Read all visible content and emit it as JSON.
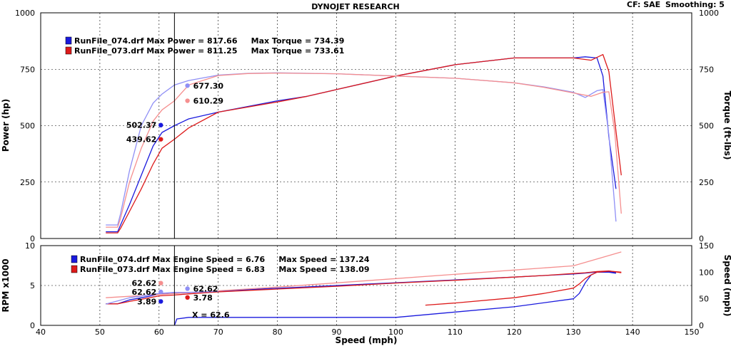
{
  "header": {
    "title": "DYNOJET RESEARCH",
    "cf_label": "CF: SAE",
    "smoothing_label": "Smoothing: 5"
  },
  "colors": {
    "run074_dark": "#1a1add",
    "run074_light": "#8f8ff5",
    "run073_dark": "#dd1a1a",
    "run073_light": "#f58f8f",
    "background": "#ffffff"
  },
  "chart_data": [
    {
      "type": "line",
      "name": "power-torque",
      "xlabel": "Speed (mph)",
      "ylabel_left": "Power (hp)",
      "ylabel_right": "Torque (ft-lbs)",
      "xlim": [
        40,
        150
      ],
      "ylim": [
        0,
        1000
      ],
      "x_ticks": [
        40,
        50,
        60,
        70,
        80,
        90,
        100,
        110,
        120,
        130,
        140,
        150
      ],
      "y_ticks": [
        0,
        250,
        500,
        750,
        1000
      ],
      "grid": true,
      "legend": [
        {
          "text": "RunFile_074.drf Max Power = 817.66     Max Torque = 734.39",
          "color": "#1a1add"
        },
        {
          "text": "RunFile_073.drf Max Power = 811.25     Max Torque = 733.61",
          "color": "#dd1a1a"
        }
      ],
      "cursor_x": 62.6,
      "series": [
        {
          "role": "power-074",
          "color": "#1a1add",
          "x": [
            51,
            53,
            53.5,
            55,
            57,
            59,
            60.5,
            62.6,
            65,
            70,
            80,
            85,
            90,
            100,
            110,
            120,
            125,
            130,
            132,
            134,
            135,
            136,
            137.2
          ],
          "y": [
            30,
            30,
            60,
            150,
            280,
            410,
            470,
            500,
            530,
            560,
            610,
            630,
            660,
            720,
            770,
            800,
            800,
            800,
            805,
            800,
            720,
            450,
            220
          ]
        },
        {
          "role": "torque-074",
          "color": "#8f8ff5",
          "x": [
            51,
            53,
            53.5,
            55,
            57,
            59,
            60.5,
            62.6,
            65,
            70,
            75,
            80,
            90,
            100,
            110,
            120,
            125,
            130,
            132,
            134,
            135,
            136,
            137.2
          ],
          "y": [
            60,
            60,
            110,
            300,
            500,
            600,
            640,
            680,
            700,
            724,
            732,
            734,
            730,
            720,
            710,
            690,
            672,
            648,
            625,
            655,
            660,
            460,
            75
          ]
        },
        {
          "role": "power-073",
          "color": "#dd1a1a",
          "x": [
            51,
            53,
            53.5,
            55,
            57,
            59,
            60.5,
            62.6,
            65,
            70,
            80,
            85,
            90,
            100,
            110,
            120,
            125,
            130,
            133,
            135,
            136,
            137,
            138.1
          ],
          "y": [
            25,
            25,
            45,
            120,
            220,
            330,
            400,
            440,
            490,
            560,
            605,
            630,
            660,
            720,
            770,
            800,
            800,
            800,
            790,
            815,
            740,
            520,
            280
          ]
        },
        {
          "role": "torque-073",
          "color": "#f58f8f",
          "x": [
            51,
            53,
            53.5,
            55,
            57,
            59,
            60.5,
            62.6,
            65,
            70,
            75,
            80,
            90,
            100,
            110,
            120,
            125,
            130,
            133,
            135,
            136,
            137,
            138.1
          ],
          "y": [
            50,
            50,
            90,
            250,
            400,
            520,
            570,
            610,
            680,
            722,
            731,
            733,
            730,
            720,
            710,
            690,
            670,
            645,
            630,
            648,
            650,
            470,
            110
          ]
        }
      ],
      "markers": [
        {
          "label": "677.30",
          "x": 64.8,
          "y": 677.3,
          "color": "#8f8ff5",
          "label_side": "right"
        },
        {
          "label": "610.29",
          "x": 64.8,
          "y": 610.29,
          "color": "#f58f8f",
          "label_side": "right"
        },
        {
          "label": "502.37",
          "x": 60.3,
          "y": 502.37,
          "color": "#1a1add",
          "label_side": "left"
        },
        {
          "label": "439.62",
          "x": 60.3,
          "y": 439.62,
          "color": "#dd1a1a",
          "label_side": "left"
        }
      ]
    },
    {
      "type": "line",
      "name": "rpm-speed",
      "xlabel": "Speed (mph)",
      "ylabel_left": "RPM x1000",
      "ylabel_right": "Speed (mph)",
      "xlim": [
        40,
        150
      ],
      "ylim": [
        0,
        10
      ],
      "ylim_right": [
        0,
        150
      ],
      "x_ticks": [
        40,
        50,
        60,
        70,
        80,
        90,
        100,
        110,
        120,
        130,
        140,
        150
      ],
      "y_ticks": [
        0,
        5,
        10
      ],
      "y_ticks_right": [
        0,
        50,
        100,
        150
      ],
      "grid": true,
      "legend": [
        {
          "text": "RunFile_074.drf Max Engine Speed = 6.76     Max Speed = 137.24",
          "color": "#1a1add"
        },
        {
          "text": "RunFile_073.drf Max Engine Speed = 6.83     Max Speed = 138.09",
          "color": "#dd1a1a"
        }
      ],
      "cursor_label": "X = 62.6",
      "series": [
        {
          "role": "rpm-074",
          "color": "#1a1add",
          "x": [
            51,
            53,
            55,
            58,
            60,
            62.6,
            65,
            70,
            80,
            90,
            100,
            110,
            120,
            125,
            130,
            132,
            134,
            136,
            137.2
          ],
          "y": [
            2.7,
            2.7,
            3.2,
            3.6,
            3.9,
            4.0,
            4.1,
            4.3,
            4.65,
            5.0,
            5.35,
            5.7,
            6.05,
            6.25,
            6.45,
            6.55,
            6.7,
            6.76,
            6.6
          ]
        },
        {
          "role": "rpm-073",
          "color": "#dd1a1a",
          "x": [
            51,
            53,
            55,
            58,
            60,
            62.6,
            65,
            70,
            80,
            90,
            100,
            110,
            120,
            125,
            130,
            132,
            134,
            136,
            138.1
          ],
          "y": [
            2.7,
            2.7,
            3.0,
            3.4,
            3.7,
            3.8,
            3.95,
            4.2,
            4.55,
            4.9,
            5.3,
            5.65,
            6.05,
            6.25,
            6.5,
            6.6,
            6.75,
            6.83,
            6.6
          ]
        },
        {
          "role": "speed-073-light",
          "color": "#f58f8f",
          "axis": "right",
          "x": [
            51,
            60,
            70,
            80,
            90,
            100,
            110,
            120,
            130,
            138.1
          ],
          "y": [
            52,
            58,
            65,
            72,
            80,
            88,
            96,
            104,
            112,
            138.09
          ]
        },
        {
          "role": "speed-074-light",
          "color": "#8f8ff5",
          "axis": "right",
          "x": [
            51,
            55,
            60,
            62.6,
            65,
            70
          ],
          "y": [
            40,
            52,
            60,
            62,
            62,
            64
          ]
        },
        {
          "role": "speed-074-lower",
          "color": "#1a1add",
          "axis": "right",
          "x": [
            62.6,
            63,
            65,
            70,
            80,
            90,
            100,
            110,
            120,
            130,
            131,
            132,
            133,
            134,
            136,
            137.2
          ],
          "y": [
            0,
            12,
            15,
            15,
            15,
            15,
            15,
            25,
            35,
            50,
            60,
            80,
            95,
            100,
            100,
            98
          ]
        },
        {
          "role": "speed-073-lower",
          "color": "#dd1a1a",
          "axis": "right",
          "x": [
            105,
            110,
            120,
            125,
            130,
            131,
            132,
            133,
            134,
            136,
            138.1
          ],
          "y": [
            38,
            42,
            52,
            60,
            70,
            78,
            88,
            95,
            100,
            102,
            100
          ]
        }
      ],
      "markers": [
        {
          "label": "62.62",
          "x": 60.3,
          "y": 5.3,
          "color": "#f58f8f",
          "label_side": "left"
        },
        {
          "label": "62.62",
          "x": 60.3,
          "y": 4.2,
          "color": "#8f8ff5",
          "label_side": "left"
        },
        {
          "label": "3.89",
          "x": 60.3,
          "y": 3.0,
          "color": "#1a1add",
          "label_side": "left"
        },
        {
          "label": "62.62",
          "x": 64.8,
          "y": 4.6,
          "color": "#8f8ff5",
          "label_side": "right"
        },
        {
          "label": "3.78",
          "x": 64.8,
          "y": 3.5,
          "color": "#dd1a1a",
          "label_side": "right"
        }
      ]
    }
  ]
}
